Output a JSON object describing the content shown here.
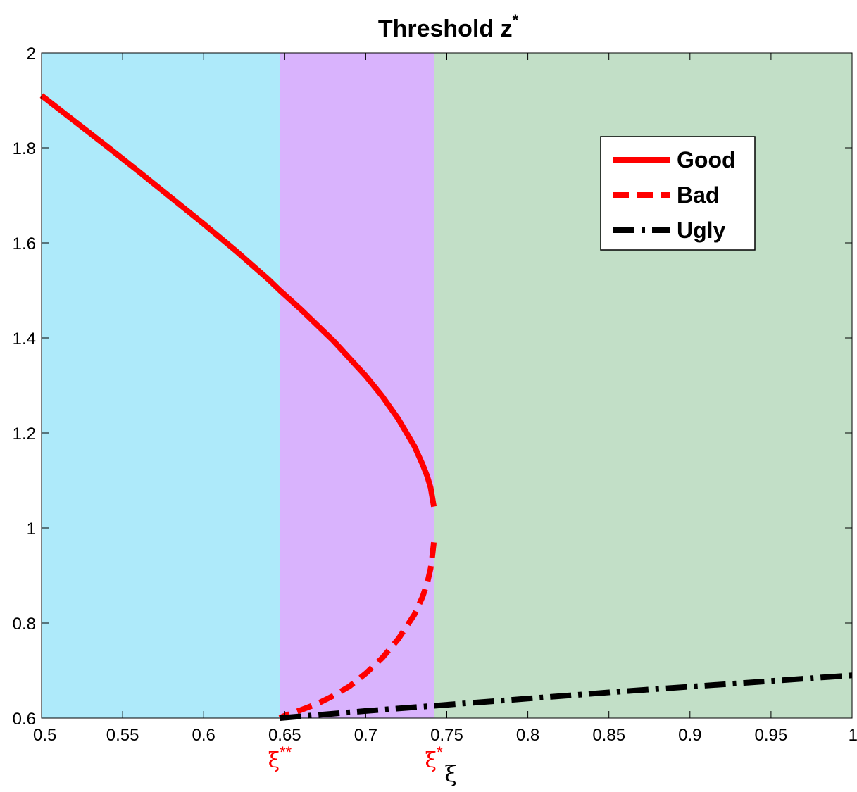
{
  "chart_data": {
    "type": "line",
    "title": "Threshold z",
    "title_superscript": "*",
    "xlabel": "ξ",
    "ylabel": "",
    "xlim": [
      0.5,
      1
    ],
    "ylim": [
      0.6,
      2
    ],
    "xticks": [
      "0.5",
      "0.55",
      "0.6",
      "0.65",
      "0.7",
      "0.75",
      "0.8",
      "0.85",
      "0.9",
      "0.95",
      "1"
    ],
    "xtick_values": [
      0.5,
      0.55,
      0.6,
      0.65,
      0.7,
      0.75,
      0.8,
      0.85,
      0.9,
      0.95,
      1.0
    ],
    "yticks": [
      "0.6",
      "0.8",
      "1",
      "1.2",
      "1.4",
      "1.6",
      "1.8",
      "2"
    ],
    "ytick_values": [
      0.6,
      0.8,
      1.0,
      1.2,
      1.4,
      1.6,
      1.8,
      2.0
    ],
    "grid": false,
    "legend_position": "top-right",
    "regions": [
      {
        "x0": 0.5,
        "x1": 0.647,
        "color": "#aeeafa"
      },
      {
        "x0": 0.647,
        "x1": 0.742,
        "color": "#d9b3fd"
      },
      {
        "x0": 0.742,
        "x1": 1.0,
        "color": "#c2dfc7"
      }
    ],
    "annotations": [
      {
        "text": "ξ",
        "superscript": "**",
        "x": 0.647,
        "color": "#ff0000"
      },
      {
        "text": "ξ",
        "superscript": "*",
        "x": 0.742,
        "color": "#ff0000"
      }
    ],
    "series": [
      {
        "name": "Good",
        "style": "solid",
        "color": "#ff0000",
        "x": [
          0.5,
          0.52,
          0.54,
          0.56,
          0.58,
          0.6,
          0.62,
          0.64,
          0.647,
          0.66,
          0.68,
          0.7,
          0.71,
          0.72,
          0.73,
          0.735,
          0.738,
          0.74,
          0.741,
          0.742
        ],
        "y": [
          1.91,
          1.857,
          1.804,
          1.75,
          1.695,
          1.64,
          1.583,
          1.523,
          1.5,
          1.46,
          1.394,
          1.32,
          1.278,
          1.23,
          1.172,
          1.134,
          1.108,
          1.085,
          1.065,
          1.045
        ]
      },
      {
        "name": "Bad",
        "style": "dashed",
        "color": "#ff0000",
        "x": [
          0.742,
          0.741,
          0.74,
          0.738,
          0.735,
          0.73,
          0.72,
          0.71,
          0.7,
          0.69,
          0.68,
          0.67,
          0.66,
          0.65,
          0.647
        ],
        "y": [
          0.97,
          0.94,
          0.915,
          0.885,
          0.855,
          0.818,
          0.766,
          0.726,
          0.694,
          0.667,
          0.647,
          0.63,
          0.617,
          0.605,
          0.6
        ]
      },
      {
        "name": "Ugly",
        "style": "dashdot",
        "color": "#000000",
        "x": [
          0.647,
          0.7,
          0.75,
          0.8,
          0.85,
          0.9,
          0.95,
          1.0
        ],
        "y": [
          0.6,
          0.615,
          0.628,
          0.641,
          0.654,
          0.666,
          0.678,
          0.69
        ]
      }
    ]
  }
}
